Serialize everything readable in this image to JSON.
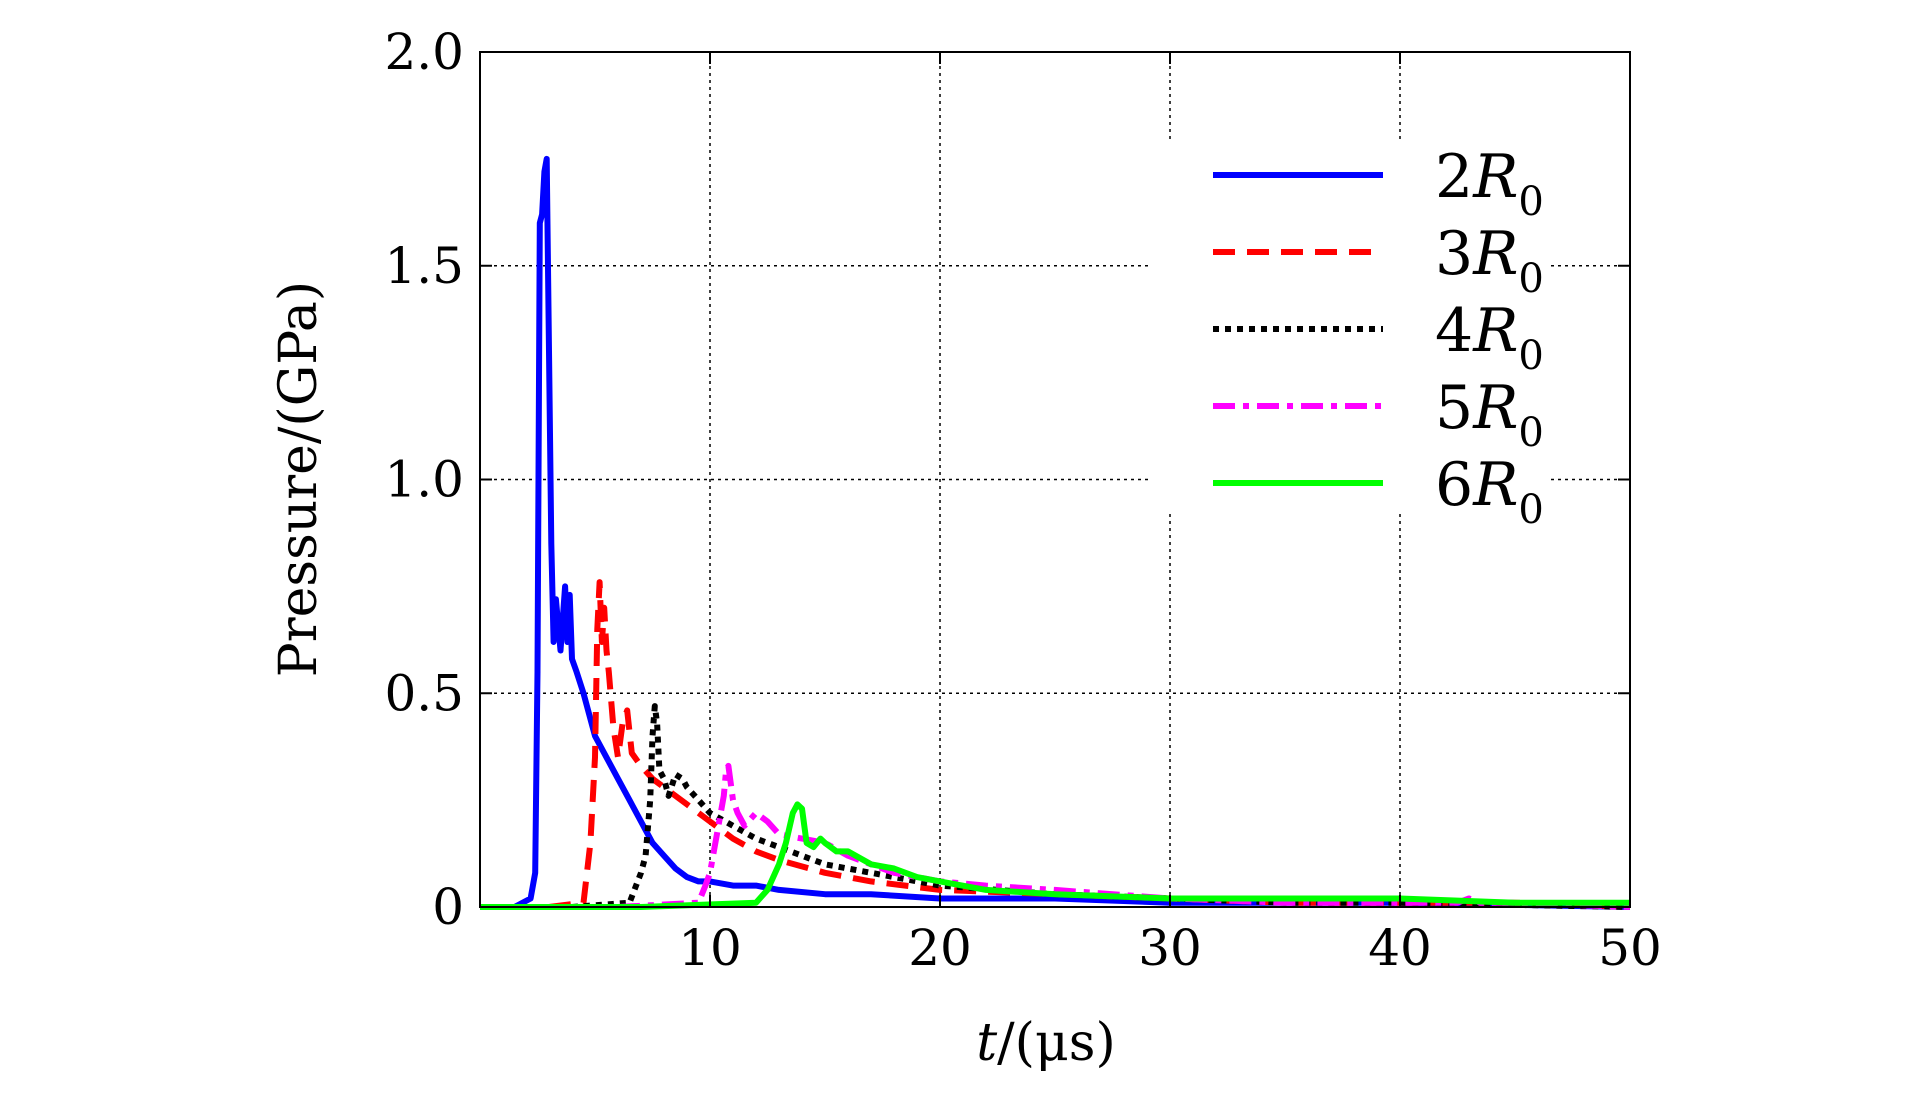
{
  "chart_data": {
    "type": "line",
    "xlabel": {
      "var": "t",
      "unit": "/(μs)"
    },
    "ylabel": "Pressure/(GPa)",
    "xlim": [
      0,
      50
    ],
    "ylim": [
      0,
      2.0
    ],
    "xticks": [
      10,
      20,
      30,
      40,
      50
    ],
    "xtick_labels": [
      "10",
      "20",
      "30",
      "40",
      "50"
    ],
    "yticks": [
      0,
      0.5,
      1.0,
      1.5,
      2.0
    ],
    "ytick_labels": [
      "0",
      "0.5",
      "1.0",
      "1.5",
      "2.0"
    ],
    "grid": true,
    "legend_position": "top-right",
    "series": [
      {
        "name": "2R0",
        "label_main": "2R",
        "label_sub": "0",
        "color": "#0000ff",
        "dash": "solid",
        "x": [
          1.5,
          2.2,
          2.4,
          2.5,
          2.6,
          2.7,
          2.8,
          2.9,
          3.0,
          3.1,
          3.2,
          3.3,
          3.5,
          3.7,
          3.8,
          3.9,
          4.0,
          4.2,
          4.5,
          5.0,
          5.5,
          6.0,
          6.5,
          7.0,
          7.5,
          8.0,
          8.5,
          9.0,
          9.5,
          10.0,
          11.0,
          12.0,
          13.0,
          15.0,
          17.0,
          20.0,
          25.0,
          30.0,
          35.0,
          40.0,
          50.0
        ],
        "y": [
          0,
          0.02,
          0.08,
          0.55,
          1.6,
          1.62,
          1.72,
          1.75,
          1.3,
          0.85,
          0.62,
          0.72,
          0.6,
          0.75,
          0.62,
          0.73,
          0.58,
          0.55,
          0.5,
          0.4,
          0.35,
          0.3,
          0.25,
          0.2,
          0.15,
          0.12,
          0.09,
          0.07,
          0.06,
          0.06,
          0.05,
          0.05,
          0.04,
          0.03,
          0.03,
          0.02,
          0.02,
          0.01,
          0.01,
          0.01,
          0.0
        ]
      },
      {
        "name": "3R0",
        "label_main": "3R",
        "label_sub": "0",
        "color": "#ff0000",
        "dash": "dashed",
        "x": [
          3.0,
          4.5,
          4.8,
          5.0,
          5.1,
          5.2,
          5.3,
          5.4,
          5.5,
          5.6,
          5.8,
          6.0,
          6.2,
          6.4,
          6.6,
          7.0,
          7.5,
          8.0,
          9.0,
          10.0,
          11.0,
          12.0,
          13.0,
          15.0,
          17.0,
          20.0,
          25.0,
          30.0,
          35.0,
          40.0,
          45.0,
          50.0
        ],
        "y": [
          0,
          0.01,
          0.15,
          0.35,
          0.65,
          0.76,
          0.62,
          0.7,
          0.6,
          0.55,
          0.42,
          0.35,
          0.43,
          0.46,
          0.36,
          0.33,
          0.3,
          0.28,
          0.24,
          0.2,
          0.16,
          0.13,
          0.11,
          0.08,
          0.06,
          0.04,
          0.03,
          0.02,
          0.01,
          0.01,
          0.01,
          0.0
        ]
      },
      {
        "name": "4R0",
        "label_main": "4R",
        "label_sub": "0",
        "color": "#000000",
        "dash": "dotted",
        "x": [
          4.0,
          6.5,
          7.0,
          7.2,
          7.4,
          7.5,
          7.6,
          7.7,
          7.8,
          8.0,
          8.2,
          8.5,
          8.8,
          9.0,
          9.5,
          10.0,
          11.0,
          12.0,
          13.0,
          14.0,
          15.0,
          17.0,
          20.0,
          25.0,
          30.0,
          35.0,
          40.0,
          50.0
        ],
        "y": [
          0,
          0.01,
          0.08,
          0.12,
          0.25,
          0.4,
          0.47,
          0.43,
          0.32,
          0.3,
          0.26,
          0.31,
          0.3,
          0.28,
          0.25,
          0.22,
          0.19,
          0.16,
          0.14,
          0.12,
          0.1,
          0.08,
          0.05,
          0.03,
          0.02,
          0.01,
          0.01,
          0.0
        ]
      },
      {
        "name": "5R0",
        "label_main": "5R",
        "label_sub": "0",
        "color": "#ff00ff",
        "dash": "dashdot",
        "x": [
          6.0,
          9.5,
          9.8,
          10.0,
          10.2,
          10.4,
          10.6,
          10.7,
          10.8,
          11.0,
          11.2,
          11.5,
          12.0,
          12.5,
          13.0,
          14.0,
          15.0,
          16.0,
          17.0,
          18.0,
          20.0,
          22.0,
          25.0,
          30.0,
          35.0,
          40.0,
          42.5,
          43.0,
          43.5,
          45.0,
          50.0
        ],
        "y": [
          0,
          0.01,
          0.05,
          0.08,
          0.14,
          0.2,
          0.26,
          0.32,
          0.33,
          0.25,
          0.22,
          0.19,
          0.22,
          0.2,
          0.17,
          0.16,
          0.15,
          0.12,
          0.1,
          0.08,
          0.06,
          0.05,
          0.04,
          0.02,
          0.01,
          0.01,
          0.01,
          0.02,
          0.01,
          0.01,
          0.0
        ]
      },
      {
        "name": "6R0",
        "label_main": "6R",
        "label_sub": "0",
        "color": "#00ff00",
        "dash": "solid",
        "x": [
          0.0,
          7.0,
          12.0,
          12.5,
          13.0,
          13.3,
          13.6,
          13.8,
          14.0,
          14.2,
          14.5,
          14.8,
          15.0,
          15.5,
          16.0,
          17.0,
          18.0,
          19.0,
          20.0,
          22.0,
          25.0,
          30.0,
          35.0,
          40.0,
          45.0,
          50.0
        ],
        "y": [
          0.0,
          0.0,
          0.01,
          0.04,
          0.1,
          0.15,
          0.22,
          0.24,
          0.23,
          0.15,
          0.14,
          0.16,
          0.15,
          0.13,
          0.13,
          0.1,
          0.09,
          0.07,
          0.06,
          0.04,
          0.03,
          0.02,
          0.02,
          0.02,
          0.01,
          0.01
        ]
      }
    ]
  }
}
